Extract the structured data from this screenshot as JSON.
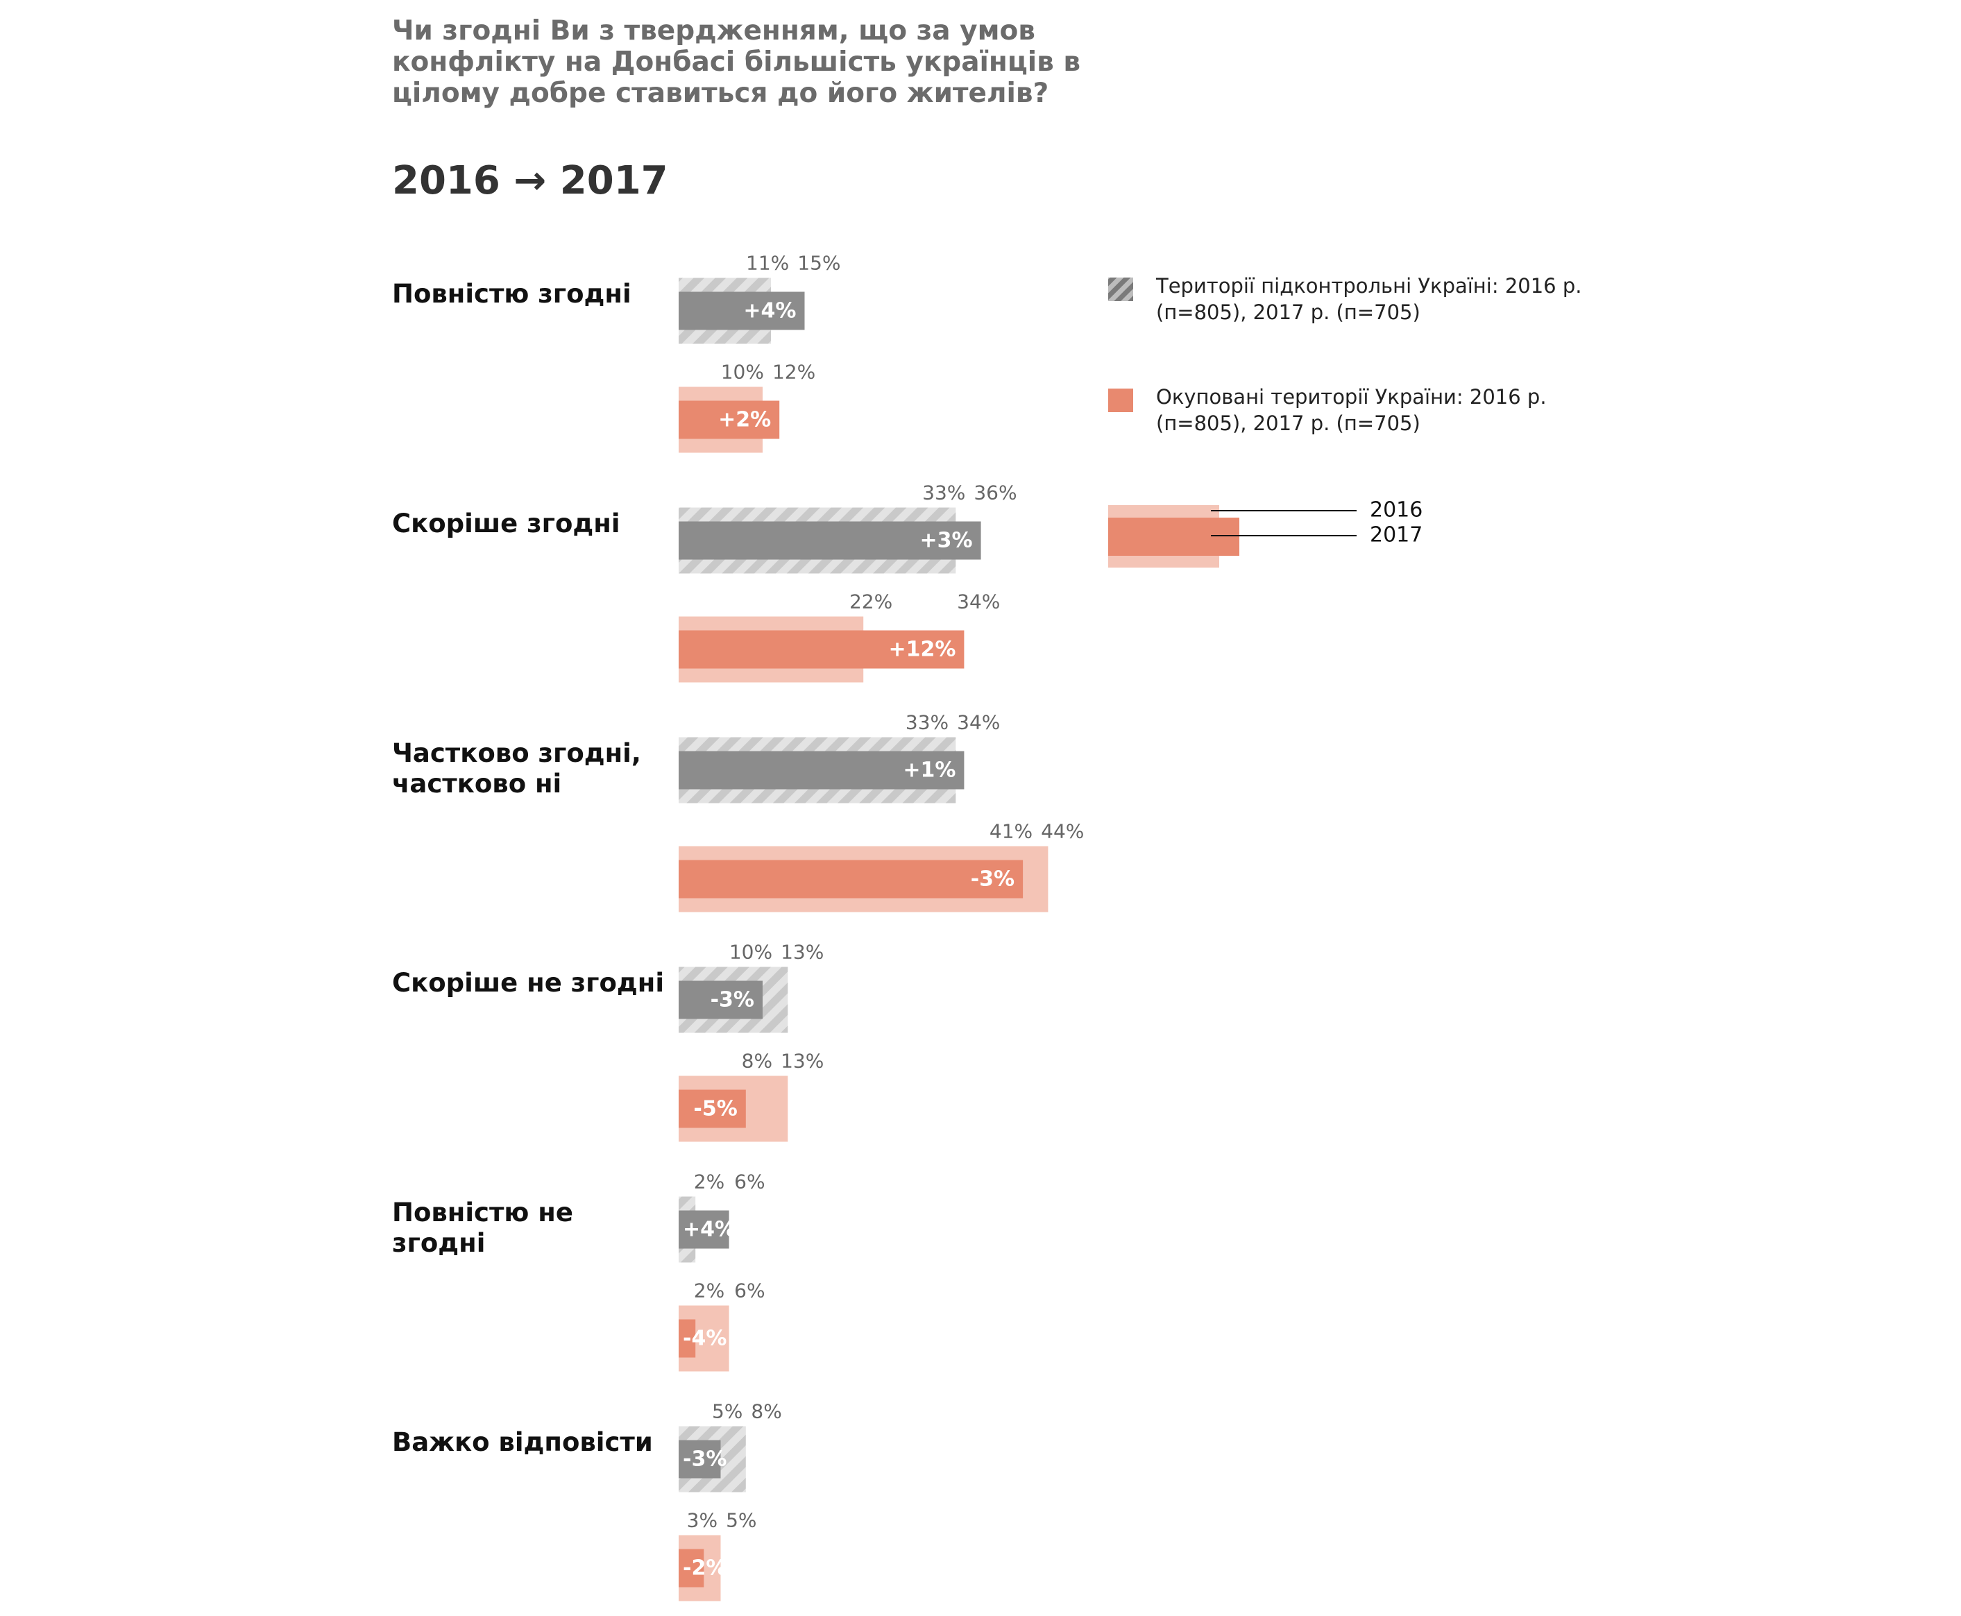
{
  "chart_data": {
    "type": "bar",
    "title": "Чи згодні Ви з твердженням, що за умов конфлікту на Донбасі більшість українців в цілому добре ставиться до його жителів?",
    "subtitle": "2016 → 2017",
    "categories": [
      "Повністю згодні",
      "Скоріше згодні",
      "Частково згодні, частково ні",
      "Скоріше не згодні",
      "Повністю не згодні",
      "Важко відповісти"
    ],
    "periods": [
      "2016",
      "2017"
    ],
    "xlim": [
      0,
      50
    ],
    "groups": [
      {
        "name": "Території підконтрольні Україні: 2016 р. (п=805), 2017 р. (п=705)",
        "color": "#8c8c8c",
        "back_color": "#cfcfcf",
        "series": [
          {
            "values": [
              11,
              33,
              33,
              13,
              2,
              8
            ],
            "value_labels": [
              "11%",
              "33%",
              "33%",
              "13%",
              "2%",
              "8%"
            ]
          },
          {
            "values": [
              15,
              36,
              34,
              10,
              6,
              5
            ],
            "value_labels": [
              "15%",
              "36%",
              "34%",
              "10%",
              "6%",
              "5%"
            ]
          }
        ],
        "change": {
          "values": [
            4,
            3,
            1,
            -3,
            4,
            -3
          ],
          "value_labels": [
            "+4%",
            "+3%",
            "+1%",
            "-3%",
            "+4%",
            "-3%"
          ]
        }
      },
      {
        "name": "Окуповані території України: 2016 р. (п=805), 2017 р. (п=705)",
        "color": "#e8896f",
        "back_color": "#f4c4b6",
        "series": [
          {
            "values": [
              10,
              22,
              44,
              13,
              6,
              5
            ],
            "value_labels": [
              "10%",
              "22%",
              "44%",
              "13%",
              "6%",
              "5%"
            ]
          },
          {
            "values": [
              12,
              34,
              41,
              8,
              2,
              3
            ],
            "value_labels": [
              "12%",
              "34%",
              "41%",
              "8%",
              "2%",
              "3%"
            ]
          }
        ],
        "change": {
          "values": [
            2,
            12,
            -3,
            -5,
            -4,
            -2
          ],
          "value_labels": [
            "+2%",
            "+12%",
            "-3%",
            "-5%",
            "-4%",
            "-2%"
          ]
        }
      }
    ]
  }
}
